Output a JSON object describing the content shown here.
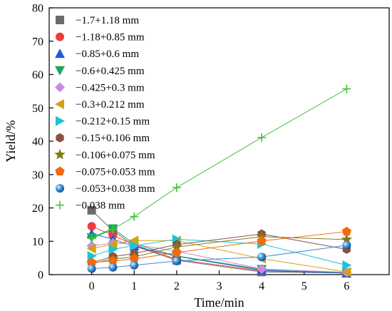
{
  "chart_data": {
    "type": "line",
    "title": "",
    "xlabel": "Time/min",
    "ylabel": "Yield/%",
    "xlim": [
      -1,
      7
    ],
    "ylim": [
      0,
      80
    ],
    "xticks": [
      0,
      1,
      2,
      3,
      4,
      5,
      6
    ],
    "yticks": [
      0,
      10,
      20,
      30,
      40,
      50,
      60,
      70,
      80
    ],
    "grid": false,
    "legend_position": "top-left",
    "series": [
      {
        "name": "−1.7+1.18 mm",
        "marker": "square",
        "color": "#6b6b6b",
        "x": [
          0,
          0.5,
          1,
          2,
          4,
          6
        ],
        "y": [
          19.3,
          13.2,
          8.6,
          4.3,
          0.8,
          0.5
        ]
      },
      {
        "name": "−1.18+0.85 mm",
        "marker": "circle",
        "color": "#f03c3c",
        "x": [
          0,
          0.5,
          1,
          2,
          4,
          6
        ],
        "y": [
          14.5,
          11.8,
          8.9,
          4.6,
          1.1,
          0.6
        ]
      },
      {
        "name": "−0.85+0.6 mm",
        "marker": "triangle-up",
        "color": "#1c5ae0",
        "x": [
          0,
          0.5,
          1,
          2,
          4,
          6
        ],
        "y": [
          12.3,
          10.6,
          8.5,
          5.5,
          1.3,
          0.4
        ]
      },
      {
        "name": "−0.6+0.425 mm",
        "marker": "triangle-down",
        "color": "#1ba85d",
        "x": [
          0,
          0.5,
          1,
          2,
          4,
          6
        ],
        "y": [
          11.1,
          13.8,
          9.2,
          5.6,
          1.6,
          0.6
        ]
      },
      {
        "name": "−0.425+0.3 mm",
        "marker": "diamond",
        "color": "#c98be0",
        "x": [
          0,
          0.5,
          1,
          2,
          4,
          6
        ],
        "y": [
          8.6,
          9.5,
          9.1,
          7.0,
          1.7,
          0.7
        ]
      },
      {
        "name": "−0.3+0.212 mm",
        "marker": "triangle-left",
        "color": "#d4a017",
        "x": [
          0,
          0.5,
          1,
          2,
          4,
          6
        ],
        "y": [
          7.8,
          9.1,
          10.2,
          10.2,
          4.8,
          0.8
        ]
      },
      {
        "name": "−0.212+0.15 mm",
        "marker": "triangle-right",
        "color": "#1cc4d6",
        "x": [
          0,
          0.5,
          1,
          2,
          4,
          6
        ],
        "y": [
          5.6,
          7.6,
          8.7,
          10.6,
          9.2,
          2.8
        ]
      },
      {
        "name": "−0.15+0.106 mm",
        "marker": "hexagon",
        "color": "#8b5146",
        "x": [
          0,
          0.5,
          1,
          2,
          4,
          6
        ],
        "y": [
          3.6,
          5.4,
          6.3,
          9.0,
          12.2,
          7.6
        ]
      },
      {
        "name": "−0.106+0.075 mm",
        "marker": "star",
        "color": "#7d7d1a",
        "x": [
          0,
          0.5,
          1,
          2,
          4,
          6
        ],
        "y": [
          3.3,
          4.7,
          5.3,
          8.3,
          11.4,
          10.5
        ]
      },
      {
        "name": "−0.075+0.053 mm",
        "marker": "pentagon",
        "color": "#f26a0f",
        "x": [
          0,
          0.5,
          1,
          2,
          4,
          6
        ],
        "y": [
          3.6,
          4.1,
          4.7,
          6.6,
          10.1,
          12.9
        ]
      },
      {
        "name": "−0.053+0.038 mm",
        "marker": "sphere",
        "color": "#3a8fd6",
        "x": [
          0,
          0.5,
          1,
          2,
          4,
          6
        ],
        "y": [
          1.8,
          2.2,
          2.8,
          4.1,
          5.3,
          8.8
        ]
      },
      {
        "name": "−0.038 mm",
        "marker": "plus",
        "color": "#42c23a",
        "x": [
          0,
          0.5,
          1,
          2,
          4,
          6
        ],
        "y": [
          10.8,
          13.6,
          17.4,
          26.1,
          41.1,
          55.7
        ]
      }
    ]
  }
}
